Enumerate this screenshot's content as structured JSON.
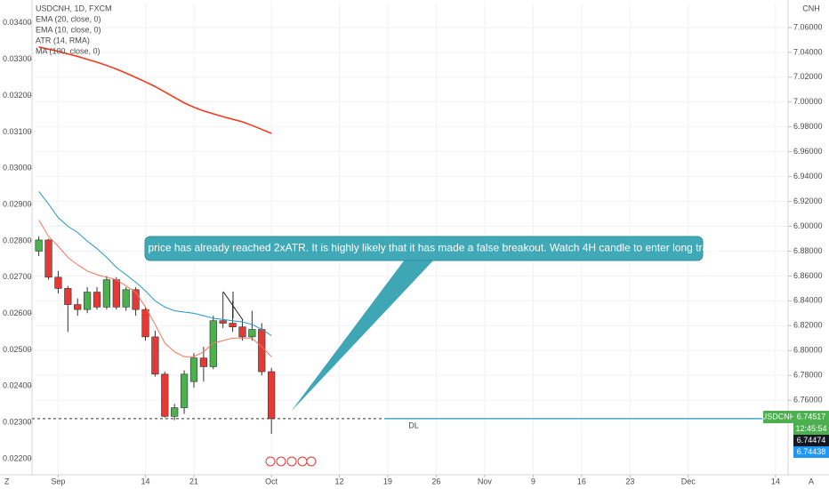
{
  "chart_data": {
    "type": "candlestick",
    "title": "USDCNH, 1D, FXCM",
    "indicators": [
      "EMA (20, close, 0)",
      "EMA (10, close, 0)",
      "ATR (14, RMA)",
      "MA (100, close, 0)"
    ],
    "currency": "CNH",
    "x": [
      0,
      1,
      2,
      3,
      4,
      5,
      6,
      7,
      8,
      9,
      10,
      11,
      12,
      13,
      14,
      15,
      16,
      17,
      18,
      19,
      20,
      21,
      22,
      23,
      24
    ],
    "open": [
      6.88,
      6.889,
      6.859,
      6.85,
      6.837,
      6.833,
      6.847,
      6.835,
      6.857,
      6.835,
      6.849,
      6.833,
      6.811,
      6.781,
      6.747,
      6.754,
      6.775,
      6.794,
      6.787,
      6.824,
      6.822,
      6.819,
      6.811,
      6.817,
      6.783
    ],
    "high": [
      6.892,
      6.89,
      6.864,
      6.852,
      6.842,
      6.851,
      6.851,
      6.86,
      6.859,
      6.851,
      6.851,
      6.835,
      6.816,
      6.783,
      6.757,
      6.784,
      6.798,
      6.803,
      6.828,
      6.847,
      6.84,
      6.825,
      6.832,
      6.822,
      6.786
    ],
    "low": [
      6.876,
      6.857,
      6.846,
      6.815,
      6.828,
      6.83,
      6.833,
      6.833,
      6.833,
      6.832,
      6.828,
      6.808,
      6.779,
      6.746,
      6.744,
      6.749,
      6.77,
      6.775,
      6.785,
      6.818,
      6.815,
      6.808,
      6.808,
      6.78,
      6.733
    ],
    "close": [
      6.889,
      6.859,
      6.85,
      6.837,
      6.833,
      6.847,
      6.835,
      6.857,
      6.835,
      6.849,
      6.833,
      6.811,
      6.781,
      6.747,
      6.754,
      6.781,
      6.794,
      6.787,
      6.824,
      6.822,
      6.819,
      6.811,
      6.817,
      6.783,
      6.74517
    ],
    "up_color": "#4caf50",
    "down_color": "#e53935",
    "series": [
      {
        "name": "EMA (20, close, 0)",
        "color": "#2196c8",
        "values": [
          6.928,
          6.918,
          6.907,
          6.9,
          6.895,
          6.888,
          6.882,
          6.875,
          6.867,
          6.861,
          6.855,
          6.848,
          6.84,
          6.835,
          6.832,
          6.831,
          6.83,
          6.828,
          6.826,
          6.825,
          6.824,
          6.823,
          6.821,
          6.817,
          6.812
        ]
      },
      {
        "name": "EMA (10, close, 0)",
        "color": "#f0775a",
        "values": [
          6.905,
          6.892,
          6.884,
          6.875,
          6.869,
          6.864,
          6.861,
          6.859,
          6.857,
          6.852,
          6.847,
          6.835,
          6.821,
          6.806,
          6.799,
          6.795,
          6.795,
          6.799,
          6.806,
          6.808,
          6.81,
          6.81,
          6.81,
          6.803,
          6.795
        ]
      },
      {
        "name": "ATR (14, RMA)",
        "color": "#f23a1e",
        "axis": "y2",
        "values": [
          0.03334,
          0.03328,
          0.03322,
          0.03315,
          0.03308,
          0.033,
          0.03292,
          0.03283,
          0.03273,
          0.03262,
          0.0325,
          0.03238,
          0.03225,
          0.0321,
          0.03195,
          0.0318,
          0.03168,
          0.03158,
          0.0315,
          0.03142,
          0.03135,
          0.03128,
          0.03118,
          0.03107,
          0.03096
        ]
      }
    ],
    "xlim": [
      -0.7,
      77.3
    ],
    "xticks": [
      {
        "value": 2,
        "label": "Sep"
      },
      {
        "value": 11,
        "label": "14"
      },
      {
        "value": 16,
        "label": "21"
      },
      {
        "value": 24,
        "label": "Oct"
      },
      {
        "value": 31,
        "label": "12"
      },
      {
        "value": 36,
        "label": "19"
      },
      {
        "value": 41,
        "label": "26"
      },
      {
        "value": 46,
        "label": "Nov"
      },
      {
        "value": 51,
        "label": "9"
      },
      {
        "value": 56,
        "label": "16"
      },
      {
        "value": 61,
        "label": "23"
      },
      {
        "value": 67,
        "label": "Dec"
      },
      {
        "value": 76,
        "label": "14"
      }
    ],
    "ylim": [
      6.7,
      7.08
    ],
    "yticks": [
      {
        "value": 7.06,
        "label": "7.06000"
      },
      {
        "value": 7.04,
        "label": "7.04000"
      },
      {
        "value": 7.02,
        "label": "7.02000"
      },
      {
        "value": 7.0,
        "label": "7.00000"
      },
      {
        "value": 6.98,
        "label": "6.98000"
      },
      {
        "value": 6.96,
        "label": "6.96000"
      },
      {
        "value": 6.94,
        "label": "6.94000"
      },
      {
        "value": 6.92,
        "label": "6.92000"
      },
      {
        "value": 6.9,
        "label": "6.90000"
      },
      {
        "value": 6.88,
        "label": "6.88000"
      },
      {
        "value": 6.86,
        "label": "6.86000"
      },
      {
        "value": 6.84,
        "label": "6.84000"
      },
      {
        "value": 6.82,
        "label": "6.82000"
      },
      {
        "value": 6.8,
        "label": "6.80000"
      },
      {
        "value": 6.78,
        "label": "6.78000"
      },
      {
        "value": 6.76,
        "label": "6.76000"
      }
    ],
    "y2lim": [
      0.02156,
      0.03456
    ],
    "y2ticks": [
      {
        "value": 0.034,
        "label": "0.03400"
      },
      {
        "value": 0.033,
        "label": "0.03300"
      },
      {
        "value": 0.032,
        "label": "0.03200"
      },
      {
        "value": 0.031,
        "label": "0.03100"
      },
      {
        "value": 0.03,
        "label": "0.03000"
      },
      {
        "value": 0.029,
        "label": "0.02900"
      },
      {
        "value": 0.028,
        "label": "0.02800"
      },
      {
        "value": 0.027,
        "label": "0.02700"
      },
      {
        "value": 0.026,
        "label": "0.02600"
      },
      {
        "value": 0.025,
        "label": "0.02500"
      },
      {
        "value": 0.024,
        "label": "0.02400"
      },
      {
        "value": 0.023,
        "label": "0.02300"
      },
      {
        "value": 0.022,
        "label": "0.02200"
      }
    ],
    "grid": true,
    "symbol_badge": "USDCNH",
    "countdown": "12:45:54",
    "bid": 6.74474,
    "ask": 6.74438,
    "annotation": "The price has already reached 2xATR. It is highly likely that it has made a false breakout. Watch 4H candle to enter long trade",
    "line_label": "DL",
    "corner_left": "Z",
    "corner_right": "A"
  }
}
